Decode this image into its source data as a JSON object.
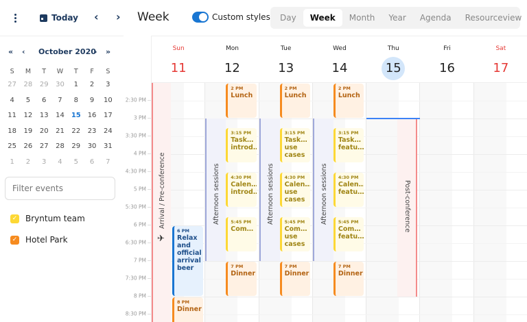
{
  "toolbar": {
    "menu_icon": "vertical-ellipsis-icon",
    "today_label": "Today",
    "today_icon": "calendar-icon",
    "prev_icon": "chevron-left-icon",
    "next_icon": "chevron-right-icon",
    "prev_glyph": "‹",
    "next_glyph": "›",
    "title": "Week",
    "custom_styles_label": "Custom styles",
    "custom_styles_on": true,
    "modes": [
      {
        "label": "Day",
        "active": false
      },
      {
        "label": "Week",
        "active": true
      },
      {
        "label": "Month",
        "active": false
      },
      {
        "label": "Year",
        "active": false
      },
      {
        "label": "Agenda",
        "active": false
      },
      {
        "label": "Resourceview",
        "active": false
      }
    ]
  },
  "sidebar": {
    "mini_calendar": {
      "month_label": "October 2020",
      "prev_year_glyph": "«",
      "prev_month_glyph": "‹",
      "next_month_glyph": "›",
      "next_year_glyph": "»",
      "weekday_headers": [
        "S",
        "M",
        "T",
        "W",
        "T",
        "F",
        "S"
      ],
      "weeks": [
        [
          "27",
          "28",
          "29",
          "30",
          "1",
          "2",
          "3"
        ],
        [
          "4",
          "5",
          "6",
          "7",
          "8",
          "9",
          "10"
        ],
        [
          "11",
          "12",
          "13",
          "14",
          "15",
          "16",
          "17"
        ],
        [
          "18",
          "19",
          "20",
          "21",
          "22",
          "23",
          "24"
        ],
        [
          "25",
          "26",
          "27",
          "28",
          "29",
          "30",
          "31"
        ],
        [
          "1",
          "2",
          "3",
          "4",
          "5",
          "6",
          "7"
        ]
      ],
      "selected": "15"
    },
    "filter": {
      "placeholder": "Filter events",
      "value": ""
    },
    "calendars": [
      {
        "label": "Bryntum team",
        "checked": true,
        "color": "#fdd835"
      },
      {
        "label": "Hotel Park",
        "checked": true,
        "color": "#f68b1f"
      }
    ]
  },
  "week": {
    "days": [
      {
        "name": "Sun",
        "date": "11",
        "weekend": true,
        "today": false
      },
      {
        "name": "Mon",
        "date": "12",
        "weekend": false,
        "today": false
      },
      {
        "name": "Tue",
        "date": "13",
        "weekend": false,
        "today": false
      },
      {
        "name": "Wed",
        "date": "14",
        "weekend": false,
        "today": false
      },
      {
        "name": "Thu",
        "date": "15",
        "weekend": false,
        "today": true
      },
      {
        "name": "Fri",
        "date": "16",
        "weekend": false,
        "today": false
      },
      {
        "name": "Sat",
        "date": "17",
        "weekend": true,
        "today": false
      }
    ],
    "time_labels": [
      "2:30 PM",
      "3 PM",
      "3:30 PM",
      "4 PM",
      "4:30 PM",
      "5 PM",
      "5:30 PM",
      "6 PM",
      "6:30 PM",
      "7 PM",
      "7:30 PM",
      "8 PM",
      "8:30 PM"
    ],
    "background_events": [
      {
        "label": "Arrival / Pre-conference",
        "day": 0,
        "icon": "airplane-icon",
        "color": "#f48a8a"
      },
      {
        "label": "Afternoon sessions",
        "day": 1,
        "color": "#9fa8da"
      },
      {
        "label": "Afternoon sessions",
        "day": 2,
        "color": "#9fa8da"
      },
      {
        "label": "Afternoon sessions",
        "day": 3,
        "color": "#9fa8da"
      },
      {
        "label": "Post-conference",
        "day": 4,
        "color": "#f48a8a"
      }
    ],
    "events": [
      {
        "day": 0,
        "time": "6 PM",
        "name": "Relax and official arrival beer",
        "color": "blue"
      },
      {
        "day": 0,
        "time": "8 PM",
        "name": "Dinner",
        "color": "orange"
      },
      {
        "day": 1,
        "time": "2 PM",
        "name": "Lunch",
        "color": "orange"
      },
      {
        "day": 1,
        "time": "3:15 PM",
        "name": "Task… introd…",
        "color": "yellow"
      },
      {
        "day": 1,
        "time": "4:30 PM",
        "name": "Calen… introd…",
        "color": "yellow"
      },
      {
        "day": 1,
        "time": "5:45 PM",
        "name": "Com…",
        "color": "yellow"
      },
      {
        "day": 1,
        "time": "7 PM",
        "name": "Dinner",
        "color": "orange"
      },
      {
        "day": 2,
        "time": "2 PM",
        "name": "Lunch",
        "color": "orange"
      },
      {
        "day": 2,
        "time": "3:15 PM",
        "name": "Task… use cases",
        "color": "yellow"
      },
      {
        "day": 2,
        "time": "4:30 PM",
        "name": "Calen… use cases",
        "color": "yellow"
      },
      {
        "day": 2,
        "time": "5:45 PM",
        "name": "Com… use cases",
        "color": "yellow"
      },
      {
        "day": 2,
        "time": "7 PM",
        "name": "Dinner",
        "color": "orange"
      },
      {
        "day": 3,
        "time": "2 PM",
        "name": "Lunch",
        "color": "orange"
      },
      {
        "day": 3,
        "time": "3:15 PM",
        "name": "Task… featu…",
        "color": "yellow"
      },
      {
        "day": 3,
        "time": "4:30 PM",
        "name": "Calen… featu…",
        "color": "yellow"
      },
      {
        "day": 3,
        "time": "5:45 PM",
        "name": "Com… featu…",
        "color": "yellow"
      },
      {
        "day": 3,
        "time": "7 PM",
        "name": "Dinner",
        "color": "orange"
      }
    ]
  }
}
